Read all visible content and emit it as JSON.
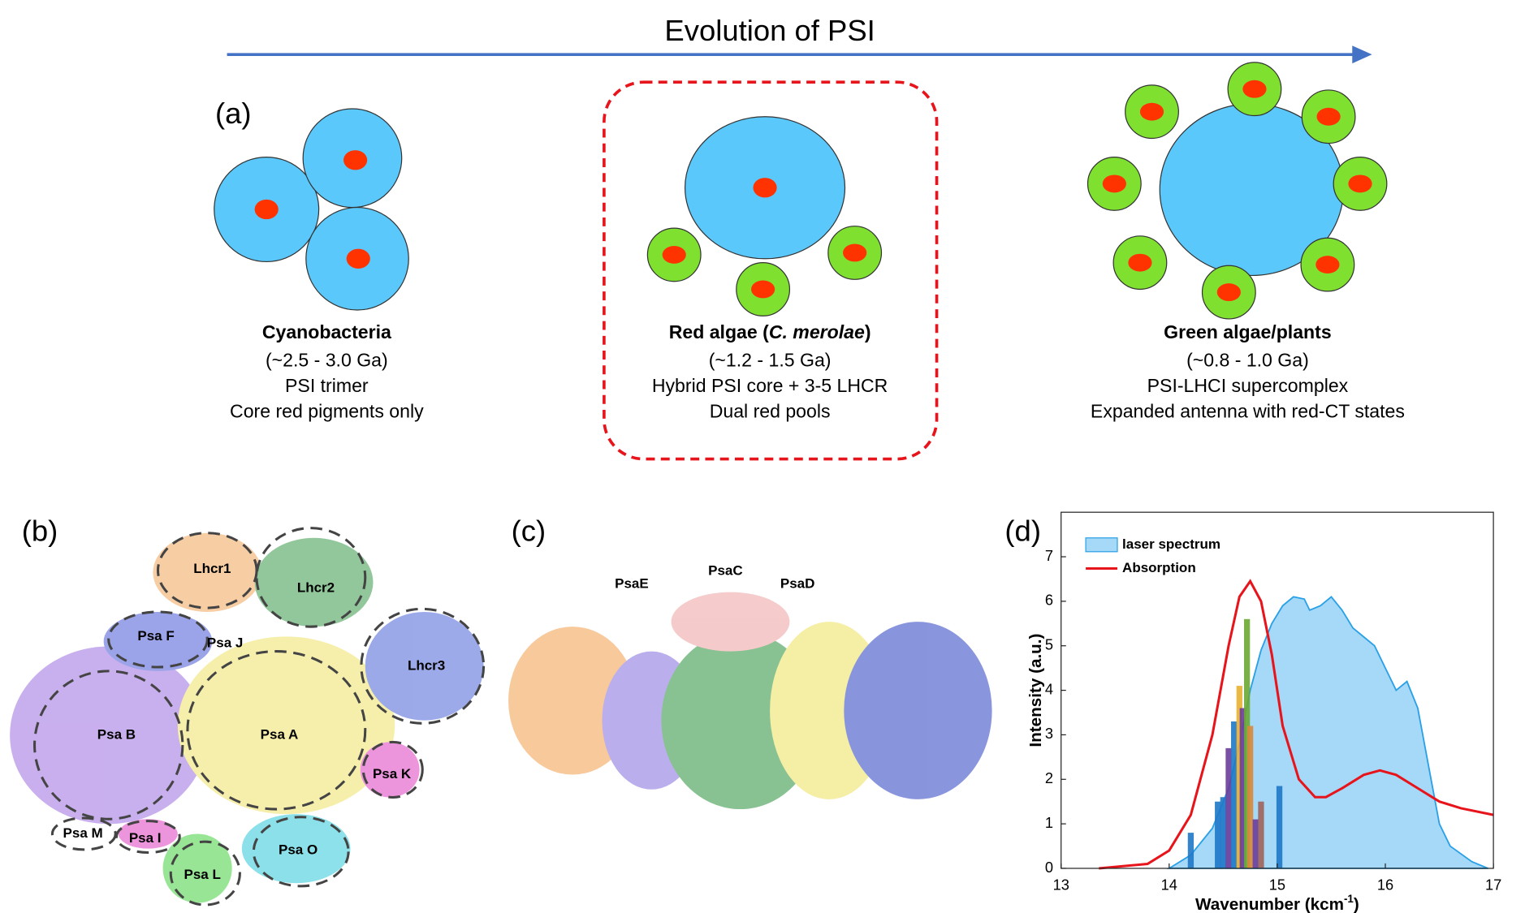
{
  "header": {
    "title": "Evolution of PSI"
  },
  "panel_a": {
    "label": "(a)",
    "organisms": [
      {
        "name": [
          "Cyanobacteria"
        ],
        "lines": [
          "(~2.5 - 3.0 Ga)",
          "PSI trimer",
          "Core red pigments only"
        ]
      },
      {
        "name": [
          "Red algae (",
          "C. merolae",
          ")"
        ],
        "lines": [
          "(~1.2 - 1.5 Ga)",
          "Hybrid PSI core + 3-5 LHCR",
          "Dual red pools"
        ]
      },
      {
        "name": [
          "Green algae/plants"
        ],
        "lines": [
          "(~0.8 - 1.0 Ga)",
          "PSI-LHCI supercomplex",
          "Expanded antenna with red-CT states"
        ]
      }
    ]
  },
  "panel_b": {
    "label": "(b)",
    "subunits": [
      "Lhcr1",
      "Lhcr2",
      "Psa F",
      "Psa J",
      "Lhcr3",
      "Psa B",
      "Psa A",
      "Psa K",
      "Psa M",
      "Psa I",
      "Psa L",
      "Psa O"
    ]
  },
  "panel_c": {
    "label": "(c)",
    "subunits": [
      "PsaE",
      "PsaC",
      "PsaD"
    ]
  },
  "panel_d": {
    "label": "(d)"
  },
  "chart_data": {
    "type": "line",
    "x_label": [
      "Wavenumber (kcm",
      "-1",
      ")"
    ],
    "y_label": "Intensity (a.u.)",
    "xlim": [
      13,
      17
    ],
    "xticks": [
      13,
      14,
      15,
      16,
      17
    ],
    "ylim": [
      0,
      8
    ],
    "yticks": [
      0,
      1,
      2,
      3,
      4,
      5,
      6,
      7
    ],
    "series": [
      {
        "name": "laser spectrum",
        "kind": "area",
        "color": "#a6d8f7",
        "x": [
          14.0,
          14.2,
          14.4,
          14.55,
          14.65,
          14.75,
          14.85,
          14.95,
          15.05,
          15.15,
          15.25,
          15.3,
          15.4,
          15.5,
          15.6,
          15.7,
          15.8,
          15.9,
          16.0,
          16.1,
          16.2,
          16.3,
          16.4,
          16.5,
          16.6,
          16.8,
          16.95
        ],
        "values": [
          0,
          0.3,
          0.9,
          1.8,
          2.8,
          4.0,
          4.9,
          5.5,
          5.9,
          6.1,
          6.05,
          5.8,
          5.9,
          6.1,
          5.8,
          5.4,
          5.2,
          5.0,
          4.5,
          4.0,
          4.2,
          3.6,
          2.3,
          1.0,
          0.5,
          0.15,
          0
        ]
      },
      {
        "name": "Absorption",
        "kind": "line",
        "color": "#e8141b",
        "x": [
          13.35,
          13.8,
          14.0,
          14.2,
          14.4,
          14.55,
          14.65,
          14.75,
          14.85,
          14.95,
          15.05,
          15.2,
          15.35,
          15.45,
          15.6,
          15.8,
          15.95,
          16.1,
          16.3,
          16.5,
          16.7,
          17.0
        ],
        "values": [
          0,
          0.1,
          0.4,
          1.2,
          3.0,
          5.0,
          6.1,
          6.45,
          6.0,
          4.8,
          3.2,
          2.0,
          1.6,
          1.6,
          1.8,
          2.1,
          2.2,
          2.1,
          1.8,
          1.5,
          1.35,
          1.2
        ]
      },
      {
        "kind": "bar",
        "x": [
          14.2,
          14.45,
          14.5,
          14.55,
          14.6,
          14.65,
          14.68,
          14.72,
          14.75,
          14.8,
          14.85,
          15.02
        ],
        "values": [
          0.8,
          1.5,
          1.6,
          2.7,
          3.3,
          4.1,
          3.6,
          5.6,
          3.2,
          1.1,
          1.5,
          1.85
        ],
        "colors": [
          "#1f78c8",
          "#1f78c8",
          "#1f78c8",
          "#6a3d9a",
          "#1f78c8",
          "#e8b030",
          "#6a3d9a",
          "#6aa832",
          "#d98a3a",
          "#6a3d9a",
          "#a0645a",
          "#1f78c8"
        ]
      }
    ],
    "legend": "upper left"
  }
}
